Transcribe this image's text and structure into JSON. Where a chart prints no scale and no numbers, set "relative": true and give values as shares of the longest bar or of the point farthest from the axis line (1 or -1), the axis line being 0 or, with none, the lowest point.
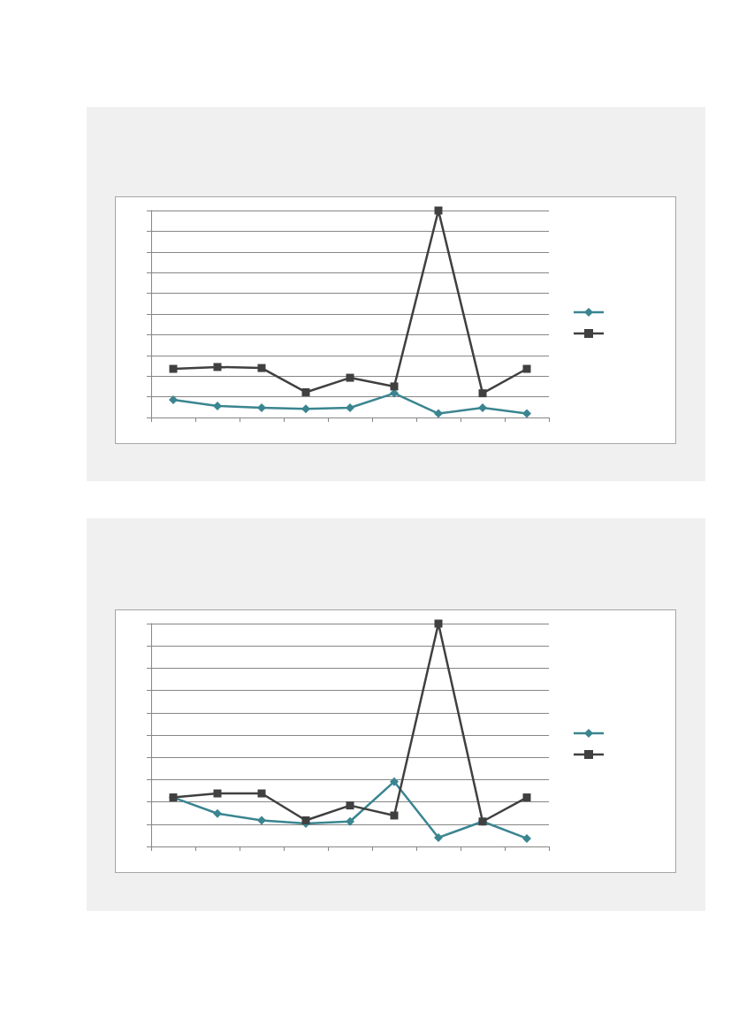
{
  "chart_data": [
    {
      "type": "line",
      "relative": true,
      "categories": [
        null,
        null,
        null,
        null,
        null,
        null,
        null,
        null,
        null
      ],
      "grid": "y",
      "line_style": "solid",
      "series": [
        {
          "color": "#3a8590",
          "marker": "diamond",
          "values": [
            0.085,
            0.056,
            0.047,
            0.042,
            0.047,
            0.117,
            0.019,
            0.047,
            0.019
          ]
        },
        {
          "color": "#404040",
          "marker": "square",
          "values": [
            0.235,
            0.244,
            0.239,
            0.122,
            0.192,
            0.15,
            1,
            0.117,
            0.235
          ]
        }
      ]
    },
    {
      "type": "line",
      "relative": true,
      "categories": [
        null,
        null,
        null,
        null,
        null,
        null,
        null,
        null,
        null
      ],
      "grid": "y",
      "line_style": "solid",
      "series": [
        {
          "color": "#3a8590",
          "marker": "diamond",
          "values": [
            0.22,
            0.148,
            0.117,
            0.103,
            0.112,
            0.291,
            0.04,
            0.112,
            0.036
          ]
        },
        {
          "color": "#404040",
          "marker": "square",
          "values": [
            0.22,
            0.238,
            0.238,
            0.117,
            0.184,
            0.139,
            1,
            0.112,
            0.22
          ]
        }
      ]
    }
  ]
}
